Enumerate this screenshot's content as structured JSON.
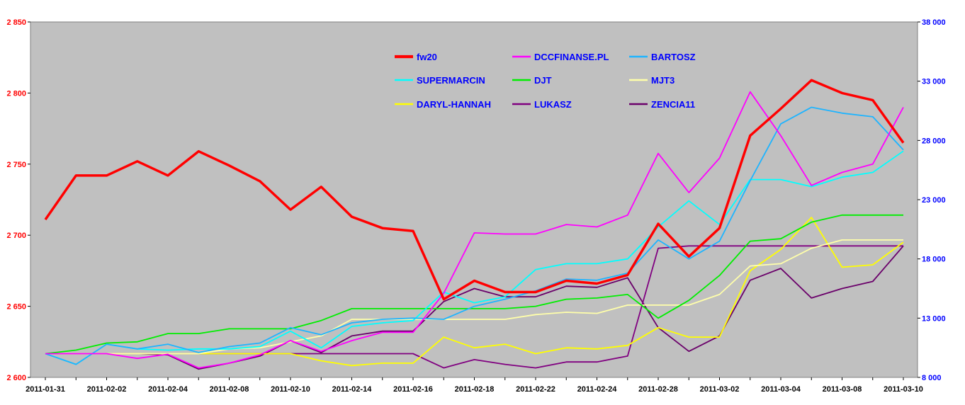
{
  "chart_data": {
    "type": "line",
    "title": "",
    "xlabel": "",
    "ylabel": "",
    "x": [
      "2011-01-31",
      "2011-02-01",
      "2011-02-02",
      "2011-02-03",
      "2011-02-04",
      "2011-02-07",
      "2011-02-08",
      "2011-02-09",
      "2011-02-10",
      "2011-02-11",
      "2011-02-14",
      "2011-02-15",
      "2011-02-16",
      "2011-02-17",
      "2011-02-18",
      "2011-02-21",
      "2011-02-22",
      "2011-02-23",
      "2011-02-24",
      "2011-02-25",
      "2011-02-28",
      "2011-03-01",
      "2011-03-02",
      "2011-03-03",
      "2011-03-04",
      "2011-03-07",
      "2011-03-08",
      "2011-03-09",
      "2011-03-10"
    ],
    "x_tick_labels": [
      "2011-01-31",
      "2011-02-02",
      "2011-02-04",
      "2011-02-08",
      "2011-02-10",
      "2011-02-14",
      "2011-02-16",
      "2011-02-18",
      "2011-02-22",
      "2011-02-24",
      "2011-02-28",
      "2011-03-02",
      "2011-03-04",
      "2011-03-08",
      "2011-03-10"
    ],
    "x_tick_indices": [
      0,
      2,
      4,
      6,
      8,
      10,
      12,
      14,
      16,
      18,
      20,
      22,
      24,
      26,
      28
    ],
    "y_left": {
      "min": 2600,
      "max": 2850,
      "ticks": [
        2600,
        2650,
        2700,
        2750,
        2800,
        2850
      ],
      "tick_labels": [
        "2 600",
        "2 650",
        "2 700",
        "2 750",
        "2 800",
        "2 850"
      ],
      "color": "#ff0000"
    },
    "y_right": {
      "min": 8000,
      "max": 38000,
      "ticks": [
        8000,
        13000,
        18000,
        23000,
        28000,
        33000,
        38000
      ],
      "tick_labels": [
        "8 000",
        "13 000",
        "18 000",
        "23 000",
        "28 000",
        "33 000",
        "38 000"
      ],
      "color": "#0000ff"
    },
    "grid": false,
    "plot_background": "#c0c0c0",
    "legend_position": "top-center",
    "series": [
      {
        "name": "fw20",
        "axis": "left",
        "color": "#ff0000",
        "width": 3.5,
        "values": [
          2711,
          2742,
          2742,
          2752,
          2742,
          2759,
          2749,
          2738,
          2718,
          2734,
          2713,
          2705,
          2703,
          2655,
          2668,
          2660,
          2660,
          2668,
          2666,
          2672,
          2708,
          2685,
          2705,
          2770,
          2789,
          2809,
          2800,
          2795,
          2765
        ]
      },
      {
        "name": "DCCFINANSE.PL",
        "axis": "right",
        "color": "#ff00ff",
        "width": 1.8,
        "values": [
          10000,
          10000,
          10000,
          9600,
          9950,
          8800,
          9200,
          9900,
          11100,
          10200,
          11100,
          11800,
          11800,
          15100,
          20200,
          20100,
          20100,
          20900,
          20700,
          21700,
          26900,
          23600,
          26500,
          32100,
          28400,
          24200,
          25300,
          26000,
          30800
        ]
      },
      {
        "name": "BARTOSZ",
        "axis": "right",
        "color": "#1eb4ff",
        "width": 1.8,
        "values": [
          10000,
          9100,
          10800,
          10400,
          10800,
          10100,
          10600,
          10900,
          12200,
          11600,
          12600,
          12900,
          13000,
          12900,
          14000,
          14600,
          15300,
          16300,
          16200,
          16800,
          19600,
          18000,
          19500,
          24600,
          29400,
          30800,
          30300,
          30000,
          27200
        ]
      },
      {
        "name": "SUPERMARCIN",
        "axis": "right",
        "color": "#00ffff",
        "width": 1.8,
        "values": [
          10000,
          9100,
          10800,
          10400,
          10300,
          10400,
          10400,
          10600,
          11900,
          10500,
          12300,
          12600,
          12800,
          15200,
          14300,
          14800,
          17100,
          17600,
          17600,
          18000,
          20700,
          22900,
          20900,
          24700,
          24700,
          24100,
          24900,
          25300,
          27100
        ]
      },
      {
        "name": "DJT",
        "axis": "right",
        "color": "#00ee00",
        "width": 1.8,
        "values": [
          10000,
          10300,
          10900,
          11000,
          11700,
          11700,
          12100,
          12100,
          12100,
          12800,
          13800,
          13800,
          13800,
          13800,
          13800,
          13800,
          14000,
          14600,
          14700,
          15000,
          13000,
          14500,
          16600,
          19500,
          19700,
          21100,
          21700,
          21700,
          21700
        ]
      },
      {
        "name": "MJT3",
        "axis": "right",
        "color": "#ffffaa",
        "width": 1.8,
        "values": [
          10000,
          10000,
          10000,
          10000,
          10000,
          10000,
          10400,
          10500,
          11000,
          11500,
          12900,
          12900,
          12900,
          12900,
          12900,
          12900,
          13300,
          13500,
          13400,
          14100,
          14100,
          14100,
          15000,
          17400,
          17600,
          18900,
          19600,
          19600,
          19600
        ]
      },
      {
        "name": "DARYL-HANNAH",
        "axis": "right",
        "color": "#ffff00",
        "width": 1.8,
        "values": [
          10000,
          10000,
          10000,
          10000,
          10000,
          10000,
          10000,
          10000,
          10000,
          9400,
          9000,
          9200,
          9200,
          11400,
          10500,
          10800,
          10000,
          10500,
          10400,
          10700,
          12200,
          11400,
          11400,
          17000,
          18800,
          21500,
          17300,
          17500,
          19400
        ]
      },
      {
        "name": "LUKASZ",
        "axis": "right",
        "color": "#800080",
        "width": 1.8,
        "values": [
          10000,
          10000,
          10000,
          10000,
          10000,
          10000,
          10000,
          10000,
          10000,
          10000,
          10000,
          10000,
          10000,
          8800,
          9500,
          9100,
          8800,
          9300,
          9300,
          9800,
          18900,
          19100,
          19100,
          19100,
          19100,
          19100,
          19100,
          19100,
          19100
        ]
      },
      {
        "name": "ZENCIA11",
        "axis": "right",
        "color": "#6a006a",
        "width": 1.8,
        "values": [
          10000,
          10000,
          10000,
          10000,
          9900,
          8700,
          9200,
          9800,
          11100,
          10100,
          11500,
          11900,
          11900,
          14400,
          15500,
          14800,
          14800,
          15700,
          15600,
          16400,
          12200,
          10200,
          11500,
          16200,
          17200,
          14700,
          15500,
          16100,
          19100
        ]
      }
    ]
  }
}
